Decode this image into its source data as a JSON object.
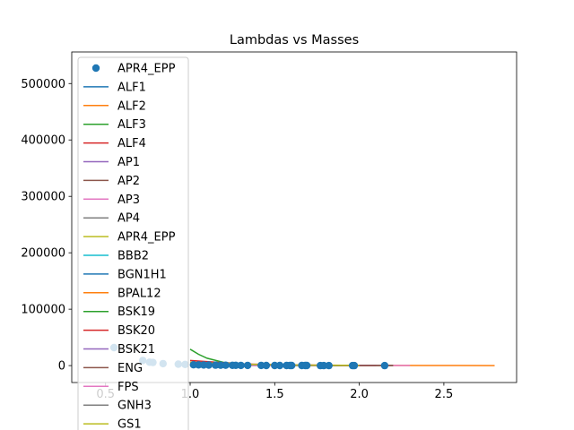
{
  "chart_data": {
    "type": "scatter",
    "title": "Lambdas vs Masses",
    "xlabel": "",
    "ylabel": "",
    "xlim": [
      0.3,
      2.93
    ],
    "ylim": [
      -30000,
      556000
    ],
    "xticks": [
      0.5,
      1.0,
      1.5,
      2.0,
      2.5
    ],
    "xtick_labels": [
      "0.5",
      "1.0",
      "1.5",
      "2.0",
      "2.5"
    ],
    "yticks": [
      0,
      100000,
      200000,
      300000,
      400000,
      500000
    ],
    "ytick_labels": [
      "0",
      "100000",
      "200000",
      "300000",
      "400000",
      "500000"
    ],
    "grid": false,
    "legend_position": "upper-left",
    "scatter": {
      "name": "APR4_EPP",
      "color": "#1f77b4",
      "x": [
        0.55,
        0.72,
        0.76,
        0.78,
        0.84,
        0.93,
        0.97,
        1.02,
        1.05,
        1.08,
        1.11,
        1.15,
        1.18,
        1.21,
        1.25,
        1.27,
        1.3,
        1.34,
        1.42,
        1.45,
        1.5,
        1.53,
        1.57,
        1.59,
        1.6,
        1.66,
        1.68,
        1.69,
        1.77,
        1.79,
        1.82,
        1.96,
        1.97,
        2.15
      ],
      "y": [
        32000,
        9000,
        6000,
        5500,
        3500,
        2500,
        2000,
        1500,
        1300,
        1100,
        900,
        800,
        700,
        600,
        500,
        450,
        400,
        350,
        300,
        250,
        200,
        180,
        160,
        150,
        140,
        120,
        110,
        100,
        90,
        80,
        70,
        50,
        45,
        30
      ]
    },
    "series": [
      {
        "name": "ALF1",
        "color": "#1f77b4",
        "x": [
          1.0,
          1.2,
          1.5,
          1.8,
          2.0,
          2.2
        ],
        "y": [
          2500,
          1200,
          500,
          250,
          150,
          100
        ]
      },
      {
        "name": "ALF2",
        "color": "#ff7f0e",
        "x": [
          1.0,
          1.3,
          1.6,
          2.0,
          2.4,
          2.8
        ],
        "y": [
          3000,
          1500,
          700,
          300,
          150,
          80
        ]
      },
      {
        "name": "ALF3",
        "color": "#2ca02c",
        "x": [
          1.0,
          1.05,
          1.1,
          1.2,
          1.3,
          1.45,
          1.6
        ],
        "y": [
          29000,
          20000,
          13000,
          5500,
          2800,
          1200,
          500
        ]
      },
      {
        "name": "ALF4",
        "color": "#d62728",
        "x": [
          1.0,
          1.3,
          1.6,
          1.9,
          2.1
        ],
        "y": [
          9000,
          3000,
          1200,
          500,
          300
        ]
      },
      {
        "name": "AP1",
        "color": "#9467bd",
        "x": [
          1.0,
          1.2,
          1.4,
          1.6
        ],
        "y": [
          1500,
          600,
          250,
          120
        ]
      },
      {
        "name": "AP2",
        "color": "#8c564b",
        "x": [
          1.0,
          1.2,
          1.5,
          1.8
        ],
        "y": [
          2000,
          800,
          300,
          150
        ]
      },
      {
        "name": "AP3",
        "color": "#e377c2",
        "x": [
          1.0,
          1.3,
          1.7,
          2.1,
          2.3
        ],
        "y": [
          3000,
          1200,
          400,
          150,
          100
        ]
      },
      {
        "name": "AP4",
        "color": "#7f7f7f",
        "x": [
          1.0,
          1.3,
          1.6,
          2.0,
          2.2
        ],
        "y": [
          2500,
          1000,
          400,
          150,
          100
        ]
      },
      {
        "name": "APR4_EPP",
        "color": "#bcbd22",
        "x": [
          1.0,
          1.3,
          1.6,
          2.0,
          2.2
        ],
        "y": [
          2500,
          1000,
          400,
          150,
          100
        ]
      },
      {
        "name": "BBB2",
        "color": "#17becf",
        "x": [
          1.0,
          1.3,
          1.6,
          1.9
        ],
        "y": [
          2300,
          900,
          350,
          150
        ]
      },
      {
        "name": "BGN1H1",
        "color": "#1f77b4",
        "x": [
          1.0,
          1.2,
          1.4,
          1.6
        ],
        "y": [
          4000,
          2000,
          900,
          400
        ]
      },
      {
        "name": "BPAL12",
        "color": "#ff7f0e",
        "x": [
          1.0,
          1.1,
          1.2,
          1.3
        ],
        "y": [
          800,
          400,
          200,
          100
        ]
      },
      {
        "name": "BSK19",
        "color": "#2ca02c",
        "x": [
          1.0,
          1.3,
          1.6,
          1.9
        ],
        "y": [
          1500,
          600,
          250,
          100
        ]
      },
      {
        "name": "BSK20",
        "color": "#d62728",
        "x": [
          1.0,
          1.3,
          1.6,
          2.0,
          2.1
        ],
        "y": [
          3500,
          1400,
          600,
          200,
          150
        ]
      },
      {
        "name": "BSK21",
        "color": "#9467bd",
        "x": [
          1.0,
          1.3,
          1.6,
          2.0,
          2.2
        ],
        "y": [
          4500,
          1800,
          800,
          300,
          200
        ]
      },
      {
        "name": "ENG",
        "color": "#8c564b",
        "x": [
          1.0,
          1.3,
          1.6,
          2.0,
          2.2
        ],
        "y": [
          3000,
          1200,
          500,
          200,
          120
        ]
      },
      {
        "name": "FPS",
        "color": "#e377c2",
        "x": [
          1.0,
          1.2,
          1.5,
          1.8
        ],
        "y": [
          1800,
          700,
          250,
          100
        ]
      },
      {
        "name": "GNH3",
        "color": "#7f7f7f",
        "x": [
          1.0,
          1.3,
          1.6,
          1.95
        ],
        "y": [
          5500,
          2000,
          800,
          300
        ]
      },
      {
        "name": "GS1",
        "color": "#bcbd22",
        "x": [
          1.0,
          1.3,
          1.6,
          2.0
        ],
        "y": [
          6000,
          2500,
          1000,
          400
        ]
      }
    ]
  }
}
